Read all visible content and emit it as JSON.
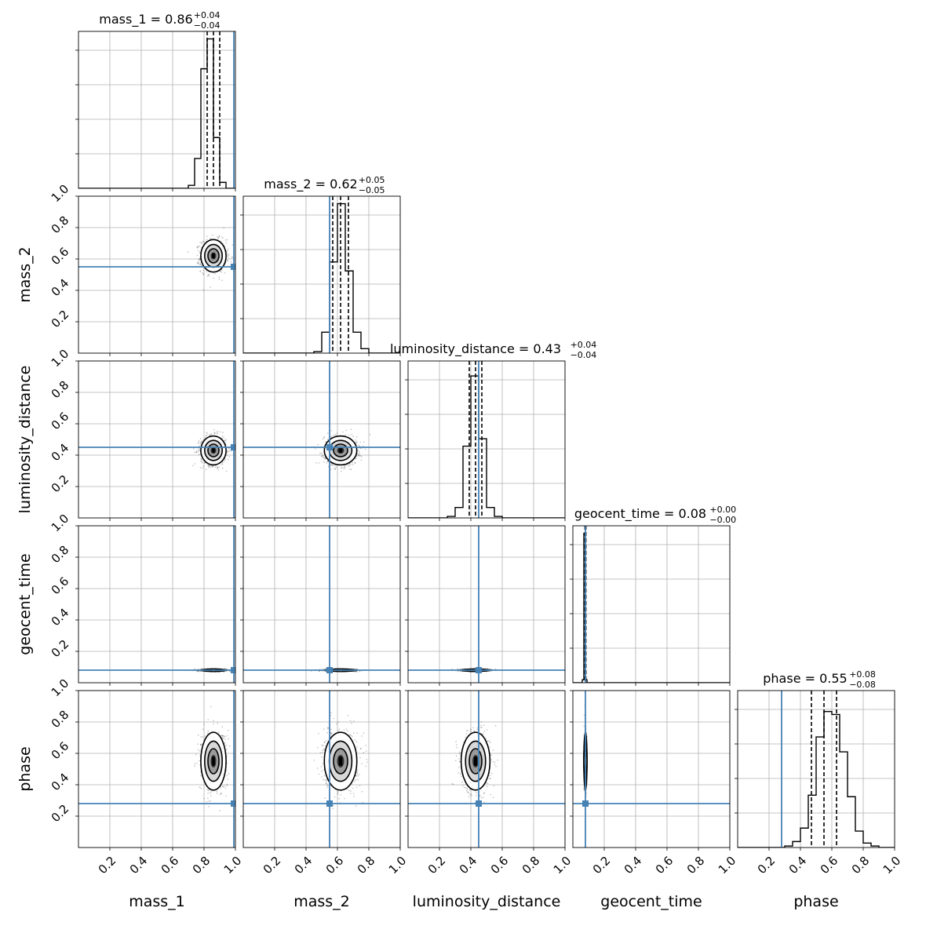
{
  "chart_data": {
    "type": "corner",
    "parameters": [
      "mass_1",
      "mass_2",
      "luminosity_distance",
      "geocent_time",
      "phase"
    ],
    "axis_range": [
      0,
      1
    ],
    "ticks": [
      0.2,
      0.4,
      0.6,
      0.8,
      1.0
    ],
    "tick_labels": [
      "0.2",
      "0.4",
      "0.6",
      "0.8",
      "1.0"
    ],
    "grid": true,
    "truths": [
      0.99,
      0.55,
      0.45,
      0.08,
      0.28
    ],
    "truth_color": "#4682b4",
    "titles": [
      {
        "param": "mass_1",
        "text": "mass_1 = 0.86",
        "plus": "+0.04",
        "minus": "−0.04"
      },
      {
        "param": "mass_2",
        "text": "mass_2 = 0.62",
        "plus": "+0.05",
        "minus": "−0.05"
      },
      {
        "param": "luminosity_distance",
        "text": "luminosity_distance = 0.43",
        "plus": "+0.04",
        "minus": "−0.04"
      },
      {
        "param": "geocent_time",
        "text": "geocent_time = 0.08",
        "plus": "+0.00",
        "minus": "−0.00"
      },
      {
        "param": "phase",
        "text": "phase = 0.55",
        "plus": "+0.08",
        "minus": "−0.08"
      }
    ],
    "quantiles": [
      [
        0.82,
        0.86,
        0.9
      ],
      [
        0.57,
        0.62,
        0.67
      ],
      [
        0.39,
        0.43,
        0.47
      ],
      [
        0.077,
        0.08,
        0.083
      ],
      [
        0.47,
        0.55,
        0.63
      ]
    ],
    "histograms": [
      {
        "edges": [
          0.7,
          0.74,
          0.78,
          0.82,
          0.86,
          0.9,
          0.94,
          0.98
        ],
        "counts": [
          0.02,
          0.2,
          0.8,
          1.0,
          0.34,
          0.04,
          0.0
        ]
      },
      {
        "edges": [
          0.45,
          0.5,
          0.55,
          0.6,
          0.65,
          0.7,
          0.75,
          0.8
        ],
        "counts": [
          0.01,
          0.14,
          0.61,
          1.0,
          0.55,
          0.14,
          0.03
        ]
      },
      {
        "edges": [
          0.25,
          0.3,
          0.35,
          0.4,
          0.45,
          0.5,
          0.55,
          0.6
        ],
        "counts": [
          0.01,
          0.07,
          0.48,
          0.95,
          0.53,
          0.07,
          0.01
        ]
      },
      {
        "edges": [
          0.06,
          0.07,
          0.08,
          0.09
        ],
        "counts": [
          0.02,
          1.0,
          0.02
        ]
      },
      {
        "edges": [
          0.25,
          0.3,
          0.35,
          0.4,
          0.45,
          0.5,
          0.55,
          0.6,
          0.65,
          0.7,
          0.75,
          0.8,
          0.85,
          0.9
        ],
        "counts": [
          0.0,
          0.01,
          0.04,
          0.13,
          0.35,
          0.74,
          0.91,
          0.89,
          0.64,
          0.34,
          0.11,
          0.03,
          0.01
        ]
      }
    ],
    "posterior_center": [
      0.86,
      0.62,
      0.43,
      0.08,
      0.55
    ],
    "posterior_sigma": [
      0.035,
      0.045,
      0.04,
      0.003,
      0.08
    ]
  }
}
